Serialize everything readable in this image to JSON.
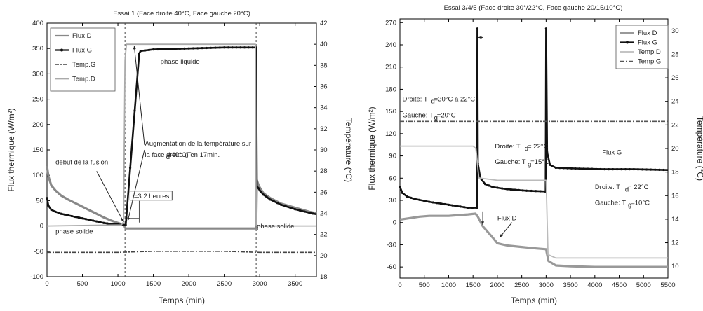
{
  "chart_data": [
    {
      "type": "line",
      "title": "Essai 1 (Face droite 40°C, Face gauche 20°C)",
      "xlabel": "Temps (min)",
      "ylabel": "Flux thermique (W/m²)",
      "y2label": "Température (°C)",
      "xlim": [
        0,
        3800
      ],
      "ylim": [
        -100,
        400
      ],
      "y2lim": [
        18,
        42
      ],
      "xticks": [
        "0",
        "500",
        "1000",
        "1500",
        "2000",
        "2500",
        "3000",
        "3500"
      ],
      "yticks": [
        "-100",
        "-50",
        "0",
        "50",
        "100",
        "150",
        "200",
        "250",
        "300",
        "350",
        "400"
      ],
      "y2ticks": [
        "18",
        "20",
        "22",
        "24",
        "26",
        "28",
        "30",
        "32",
        "34",
        "36",
        "38",
        "40",
        "42"
      ],
      "legend_position": "top-left",
      "series": [
        {
          "name": "Flux D",
          "axis": "left",
          "color": "#888888",
          "x": [
            0,
            20,
            60,
            120,
            200,
            300,
            400,
            500,
            600,
            700,
            800,
            900,
            1000,
            1060,
            1090,
            1100,
            1110,
            1200,
            1400,
            1800,
            2200,
            2600,
            2900,
            2920,
            2940,
            2950,
            2960,
            2980,
            3000,
            3050,
            3150,
            3300,
            3500,
            3700,
            3800
          ],
          "y": [
            118,
            98,
            80,
            70,
            60,
            52,
            45,
            38,
            31,
            24,
            17,
            11,
            6,
            3,
            2,
            -3,
            -5,
            -5,
            -5,
            -5,
            -5,
            -5,
            -5,
            -5,
            -5,
            -4,
            90,
            82,
            76,
            65,
            55,
            44,
            36,
            28,
            25
          ]
        },
        {
          "name": "Flux G",
          "axis": "left",
          "color": "#111111",
          "x": [
            0,
            20,
            60,
            120,
            200,
            300,
            400,
            500,
            600,
            700,
            800,
            900,
            1000,
            1060,
            1090,
            1100,
            1110,
            1300,
            1320,
            1500,
            2000,
            2500,
            2900,
            2940,
            2950,
            2960,
            2980,
            3000,
            3050,
            3150,
            3300,
            3500,
            3700,
            3800
          ],
          "y": [
            55,
            40,
            32,
            28,
            24,
            21,
            18,
            15,
            12,
            9,
            6,
            4,
            3,
            2,
            2,
            2,
            2,
            340,
            345,
            348,
            350,
            352,
            352,
            352,
            352,
            78,
            75,
            70,
            62,
            52,
            42,
            33,
            26,
            23
          ]
        },
        {
          "name": "Temp.G",
          "axis": "right",
          "color": "#444444",
          "x": [
            0,
            500,
            1000,
            1500,
            2000,
            2500,
            3000,
            3500,
            3800
          ],
          "y": [
            20.3,
            20.3,
            20.3,
            20.4,
            20.4,
            20.4,
            20.3,
            20.3,
            20.3
          ]
        },
        {
          "name": "Temp.D",
          "axis": "right",
          "color": "#aaaaaa",
          "x": [
            0,
            1050,
            1080,
            1100,
            1120,
            1200,
            1300,
            1400,
            2000,
            2500,
            2900,
            2940,
            2950,
            3000,
            3500,
            3800
          ],
          "y": [
            22.8,
            22.9,
            23.2,
            38.5,
            40.0,
            40.0,
            40.0,
            40.0,
            40.0,
            40.0,
            40.0,
            40.0,
            22.9,
            22.8,
            22.8,
            22.8
          ]
        }
      ],
      "annotations": [
        {
          "text": "phase liquide",
          "x": 1600,
          "y": 320
        },
        {
          "text": "Augmentation de la température sur",
          "x": 1380,
          "y": 158
        },
        {
          "text": "la face droite (T",
          "x": 1380,
          "y": 136
        },
        {
          "text": "d",
          "x": 1680,
          "y": 132
        },
        {
          "text": "=40°C) en 17min.",
          "x": 1700,
          "y": 136
        },
        {
          "text": "début de la fusion",
          "x": 120,
          "y": 122
        },
        {
          "text": "t=3.2 heures",
          "x": 1200,
          "y": 55
        },
        {
          "text": "phase solide",
          "x": 120,
          "y": -15
        },
        {
          "text": "phase solide",
          "x": 2960,
          "y": -5
        }
      ]
    },
    {
      "type": "line",
      "title": "Essai 3/4/5 (Face droite 30°/22°C, Face gauche 20/15/10°C)",
      "xlabel": "Temps (min)",
      "ylabel": "Flux thermique (W/m²)",
      "y2label": "Température (°C)",
      "xlim": [
        0,
        5500
      ],
      "ylim": [
        -75,
        275
      ],
      "y2lim": [
        9,
        31
      ],
      "xticks": [
        "0",
        "500",
        "1000",
        "1500",
        "2000",
        "2500",
        "3000",
        "3500",
        "4000",
        "4500",
        "5000",
        "5500"
      ],
      "yticks": [
        "-60",
        "-30",
        "0",
        "30",
        "60",
        "90",
        "120",
        "150",
        "180",
        "210",
        "240",
        "270"
      ],
      "y2ticks": [
        "10",
        "12",
        "14",
        "16",
        "18",
        "20",
        "22",
        "24",
        "26",
        "28",
        "30"
      ],
      "legend_position": "top-right",
      "series": [
        {
          "name": "Flux D",
          "axis": "left",
          "color": "#999999",
          "x": [
            0,
            200,
            400,
            600,
            800,
            1000,
            1200,
            1400,
            1550,
            1600,
            1700,
            1900,
            2000,
            2200,
            2500,
            2800,
            3000,
            3010,
            3050,
            3200,
            3500,
            4000,
            4500,
            5000,
            5500
          ],
          "y": [
            4,
            6,
            8,
            9,
            9,
            9,
            10,
            11,
            12,
            8,
            -5,
            -20,
            -28,
            -31,
            -33,
            -35,
            -36,
            -40,
            -52,
            -58,
            -59,
            -60,
            -60,
            -60,
            -60
          ]
        },
        {
          "name": "Flux G",
          "axis": "left",
          "color": "#111111",
          "x": [
            0,
            50,
            150,
            300,
            600,
            1000,
            1400,
            1580,
            1590,
            1600,
            1650,
            1750,
            1900,
            2200,
            2600,
            2980,
            2990,
            3000,
            3020,
            3080,
            3200,
            3600,
            4200,
            4800,
            5500
          ],
          "y": [
            48,
            40,
            35,
            32,
            28,
            24,
            20,
            20,
            262,
            80,
            60,
            52,
            48,
            45,
            43,
            42,
            42,
            262,
            95,
            78,
            74,
            73,
            72,
            72,
            71
          ]
        },
        {
          "name": "Temp.D",
          "axis": "right",
          "color": "#bbbbbb",
          "x": [
            0,
            1000,
            1500,
            1560,
            1620,
            2000,
            2500,
            3000,
            3040,
            3200,
            4000,
            5000,
            5500
          ],
          "y": [
            20.2,
            20.2,
            20.2,
            20.0,
            17.5,
            17.3,
            17.3,
            17.3,
            11.0,
            10.7,
            10.7,
            10.7,
            10.7
          ]
        },
        {
          "name": "Temp.G",
          "axis": "right",
          "color": "#555555",
          "x": [
            0,
            1000,
            2000,
            3000,
            4000,
            5000,
            5500
          ],
          "y": [
            22.3,
            22.3,
            22.3,
            22.3,
            22.3,
            22.3,
            22.3
          ]
        }
      ],
      "annotations": [
        {
          "text": "Droite: T",
          "x": 50,
          "y": 164
        },
        {
          "text": "d",
          "x": 640,
          "y": 161
        },
        {
          "text": "=30°C à 22°C",
          "x": 700,
          "y": 164
        },
        {
          "text": "Gauche: T",
          "x": 50,
          "y": 142
        },
        {
          "text": "g",
          "x": 700,
          "y": 139
        },
        {
          "text": "=20°C",
          "x": 760,
          "y": 142
        },
        {
          "text": "Droite: T",
          "x": 1950,
          "y": 100
        },
        {
          "text": "d",
          "x": 2560,
          "y": 97
        },
        {
          "text": "= 22°C",
          "x": 2620,
          "y": 100
        },
        {
          "text": "Gauche: T",
          "x": 1950,
          "y": 79
        },
        {
          "text": "g",
          "x": 2620,
          "y": 76
        },
        {
          "text": "=15°C",
          "x": 2680,
          "y": 79
        },
        {
          "text": "Flux G",
          "x": 4150,
          "y": 92
        },
        {
          "text": "Droite: T",
          "x": 4000,
          "y": 45
        },
        {
          "text": "d",
          "x": 4620,
          "y": 42
        },
        {
          "text": "= 22°C",
          "x": 4680,
          "y": 45
        },
        {
          "text": "Gauche: T",
          "x": 4000,
          "y": 24
        },
        {
          "text": "g",
          "x": 4680,
          "y": 21
        },
        {
          "text": "=10°C",
          "x": 4740,
          "y": 24
        },
        {
          "text": "Flux D",
          "x": 2000,
          "y": 3
        }
      ]
    }
  ]
}
